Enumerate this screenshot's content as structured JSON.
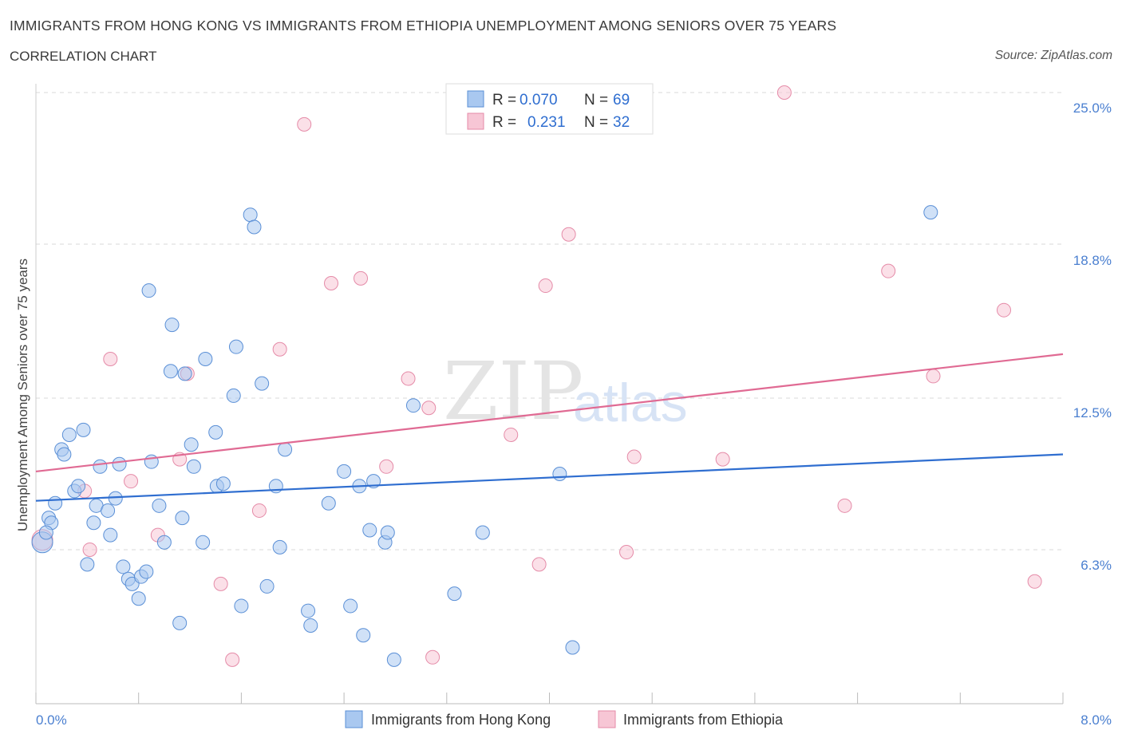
{
  "title": "IMMIGRANTS FROM HONG KONG VS IMMIGRANTS FROM ETHIOPIA UNEMPLOYMENT AMONG SENIORS OVER 75 YEARS",
  "subtitle": "CORRELATION CHART",
  "source": "Source: ZipAtlas.com",
  "watermark": {
    "zip": "ZIP",
    "atlas": "atlas"
  },
  "legend": {
    "r_label": "R =",
    "n_label": "N =",
    "series": [
      {
        "r": "0.070",
        "n": "69"
      },
      {
        "r": "0.231",
        "n": "32"
      }
    ]
  },
  "colors": {
    "blue_fill": "#a9c8f0",
    "blue_stroke": "#5a8fd6",
    "blue_line": "#2f6ed0",
    "pink_fill": "#f7c6d5",
    "pink_stroke": "#e58ba8",
    "pink_line": "#e06a93",
    "grid": "#d9d9d9",
    "axis_text": "#4a7fd0"
  },
  "chart_data": {
    "type": "scatter",
    "title": "IMMIGRANTS FROM HONG KONG VS IMMIGRANTS FROM ETHIOPIA UNEMPLOYMENT AMONG SENIORS OVER 75 YEARS",
    "xlabel": "",
    "ylabel": "Unemployment Among Seniors over 75 years",
    "xlim": [
      0,
      8
    ],
    "ylim": [
      0,
      25
    ],
    "x_tick_labels": [
      "0.0%",
      "8.0%"
    ],
    "y_ticks": [
      6.3,
      12.5,
      18.8,
      25.0
    ],
    "y_tick_labels": [
      "6.3%",
      "12.5%",
      "18.8%",
      "25.0%"
    ],
    "series": [
      {
        "name": "Immigrants from Hong Kong",
        "color": "blue",
        "trend": {
          "x": [
            0,
            8
          ],
          "y": [
            8.3,
            10.2
          ]
        },
        "points": [
          [
            0.05,
            6.6
          ],
          [
            0.1,
            7.6
          ],
          [
            0.12,
            7.4
          ],
          [
            0.15,
            8.2
          ],
          [
            0.08,
            7.0
          ],
          [
            0.2,
            10.4
          ],
          [
            0.22,
            10.2
          ],
          [
            0.26,
            11.0
          ],
          [
            0.3,
            8.7
          ],
          [
            0.33,
            8.9
          ],
          [
            0.37,
            11.2
          ],
          [
            0.4,
            5.7
          ],
          [
            0.45,
            7.4
          ],
          [
            0.47,
            8.1
          ],
          [
            0.5,
            9.7
          ],
          [
            0.56,
            7.9
          ],
          [
            0.58,
            6.9
          ],
          [
            0.62,
            8.4
          ],
          [
            0.65,
            9.8
          ],
          [
            0.68,
            5.6
          ],
          [
            0.72,
            5.1
          ],
          [
            0.75,
            4.9
          ],
          [
            0.8,
            4.3
          ],
          [
            0.82,
            5.2
          ],
          [
            0.86,
            5.4
          ],
          [
            0.88,
            16.9
          ],
          [
            0.9,
            9.9
          ],
          [
            0.96,
            8.1
          ],
          [
            1.0,
            6.6
          ],
          [
            1.05,
            13.6
          ],
          [
            1.06,
            15.5
          ],
          [
            1.12,
            3.3
          ],
          [
            1.14,
            7.6
          ],
          [
            1.16,
            13.5
          ],
          [
            1.21,
            10.6
          ],
          [
            1.23,
            9.7
          ],
          [
            1.3,
            6.6
          ],
          [
            1.32,
            14.1
          ],
          [
            1.4,
            11.1
          ],
          [
            1.41,
            8.9
          ],
          [
            1.46,
            9.0
          ],
          [
            1.54,
            12.6
          ],
          [
            1.56,
            14.6
          ],
          [
            1.6,
            4.0
          ],
          [
            1.67,
            20.0
          ],
          [
            1.7,
            19.5
          ],
          [
            1.76,
            13.1
          ],
          [
            1.87,
            8.9
          ],
          [
            1.8,
            4.8
          ],
          [
            1.9,
            6.4
          ],
          [
            1.94,
            10.4
          ],
          [
            2.12,
            3.8
          ],
          [
            2.14,
            3.2
          ],
          [
            2.28,
            8.2
          ],
          [
            2.4,
            9.5
          ],
          [
            2.45,
            4.0
          ],
          [
            2.52,
            8.9
          ],
          [
            2.55,
            2.8
          ],
          [
            2.6,
            7.1
          ],
          [
            2.63,
            9.1
          ],
          [
            2.72,
            6.6
          ],
          [
            2.74,
            7.0
          ],
          [
            2.79,
            1.8
          ],
          [
            2.94,
            12.2
          ],
          [
            3.26,
            4.5
          ],
          [
            3.48,
            7.0
          ],
          [
            4.08,
            9.4
          ],
          [
            4.18,
            2.3
          ],
          [
            6.97,
            20.1
          ]
        ]
      },
      {
        "name": "Immigrants from Ethiopia",
        "color": "pink",
        "trend": {
          "x": [
            0,
            8
          ],
          "y": [
            9.5,
            14.3
          ]
        },
        "points": [
          [
            0.05,
            6.7
          ],
          [
            0.38,
            8.7
          ],
          [
            0.42,
            6.3
          ],
          [
            0.58,
            14.1
          ],
          [
            0.74,
            9.1
          ],
          [
            0.95,
            6.9
          ],
          [
            1.12,
            10.0
          ],
          [
            1.18,
            13.5
          ],
          [
            1.44,
            4.9
          ],
          [
            1.53,
            1.8
          ],
          [
            1.74,
            7.9
          ],
          [
            1.9,
            14.5
          ],
          [
            2.09,
            23.7
          ],
          [
            2.3,
            17.2
          ],
          [
            2.53,
            17.4
          ],
          [
            2.73,
            9.7
          ],
          [
            2.9,
            13.3
          ],
          [
            3.06,
            12.1
          ],
          [
            3.09,
            1.9
          ],
          [
            3.7,
            11.0
          ],
          [
            3.92,
            5.7
          ],
          [
            3.97,
            17.1
          ],
          [
            4.15,
            19.2
          ],
          [
            4.6,
            6.2
          ],
          [
            4.66,
            10.1
          ],
          [
            5.35,
            10.0
          ],
          [
            5.83,
            25.0
          ],
          [
            6.3,
            8.1
          ],
          [
            6.64,
            17.7
          ],
          [
            6.99,
            13.4
          ],
          [
            7.54,
            16.1
          ],
          [
            7.78,
            5.0
          ]
        ]
      }
    ]
  }
}
